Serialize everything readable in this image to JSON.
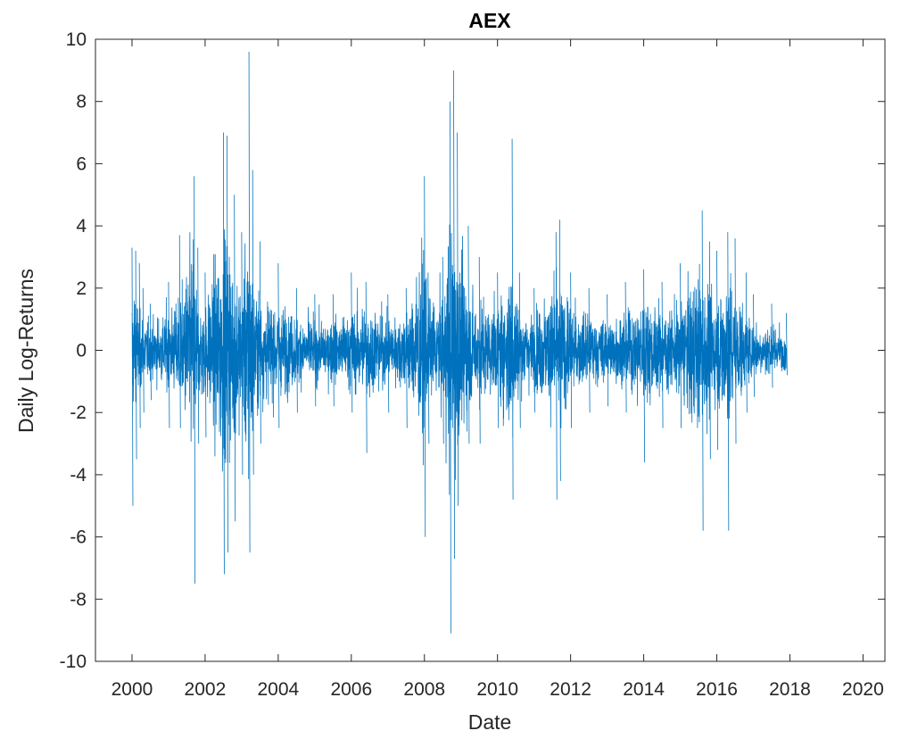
{
  "chart_data": {
    "type": "line",
    "title": "AEX",
    "xlabel": "Date",
    "ylabel": "Daily Log-Returns",
    "xlim": [
      1999,
      2020.6
    ],
    "ylim": [
      -10,
      10
    ],
    "x_ticks": [
      2000,
      2002,
      2004,
      2006,
      2008,
      2010,
      2012,
      2014,
      2016,
      2018,
      2020
    ],
    "x_tick_labels": [
      "2000",
      "2002",
      "2004",
      "2006",
      "2008",
      "2010",
      "2012",
      "2014",
      "2016",
      "2018",
      "2020"
    ],
    "y_ticks": [
      -10,
      -8,
      -6,
      -4,
      -2,
      0,
      2,
      4,
      6,
      8,
      10
    ],
    "y_tick_labels": [
      "-10",
      "-8",
      "-6",
      "-4",
      "-2",
      "0",
      "2",
      "4",
      "6",
      "8",
      "10"
    ],
    "grid": false,
    "line_color": "#0072BD",
    "series": [
      {
        "x": [
          2000.0,
          2000.1,
          2000.2,
          2000.3,
          2000.5,
          2001.0,
          2001.3,
          2001.7,
          2001.8,
          2002.0,
          2002.5,
          2002.6,
          2002.8,
          2003.0,
          2003.2,
          2003.3,
          2003.5,
          2004.0,
          2004.5,
          2005.0,
          2005.5,
          2006.0,
          2006.4,
          2007.0,
          2007.5,
          2008.0,
          2008.1,
          2008.5,
          2008.7,
          2008.8,
          2008.9,
          2009.2,
          2009.5,
          2010.0,
          2010.4,
          2010.6,
          2011.0,
          2011.6,
          2011.7,
          2012.0,
          2012.5,
          2013.0,
          2013.5,
          2014.0,
          2014.5,
          2015.0,
          2015.6,
          2015.8,
          2016.0,
          2016.3,
          2016.5,
          2016.8,
          2017.0,
          2017.5,
          2017.9
        ],
        "envelope_max": [
          3.3,
          3.2,
          2.8,
          2.0,
          1.5,
          2.2,
          3.7,
          5.6,
          3.3,
          2.5,
          7.0,
          6.9,
          5.0,
          3.8,
          9.6,
          5.8,
          3.5,
          2.8,
          2.0,
          1.8,
          1.8,
          2.5,
          2.2,
          1.8,
          2.0,
          5.6,
          2.5,
          3.0,
          8.0,
          9.0,
          7.0,
          4.0,
          3.0,
          2.5,
          6.8,
          2.5,
          2.0,
          3.8,
          4.2,
          2.5,
          2.0,
          1.8,
          2.2,
          2.6,
          2.2,
          2.8,
          4.5,
          3.5,
          3.2,
          3.8,
          3.6,
          2.5,
          1.8,
          1.5,
          1.2
        ],
        "envelope_min": [
          -5.0,
          -3.5,
          -2.5,
          -2.0,
          -1.6,
          -2.5,
          -2.5,
          -7.5,
          -3.0,
          -2.8,
          -7.2,
          -6.5,
          -5.5,
          -4.0,
          -6.5,
          -4.0,
          -3.0,
          -2.5,
          -2.0,
          -1.8,
          -1.8,
          -2.0,
          -3.3,
          -2.0,
          -2.5,
          -6.0,
          -3.0,
          -3.0,
          -9.1,
          -6.7,
          -5.0,
          -3.0,
          -3.0,
          -2.5,
          -4.8,
          -2.5,
          -2.0,
          -4.8,
          -4.2,
          -2.5,
          -2.0,
          -1.8,
          -2.0,
          -3.6,
          -2.5,
          -2.5,
          -5.8,
          -3.5,
          -3.2,
          -5.8,
          -3.0,
          -2.0,
          -1.5,
          -1.2,
          -0.8
        ]
      }
    ]
  }
}
